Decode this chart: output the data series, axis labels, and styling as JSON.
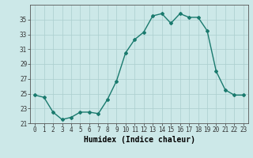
{
  "x": [
    0,
    1,
    2,
    3,
    4,
    5,
    6,
    7,
    8,
    9,
    10,
    11,
    12,
    13,
    14,
    15,
    16,
    17,
    18,
    19,
    20,
    21,
    22,
    23
  ],
  "y": [
    24.8,
    24.5,
    22.5,
    21.5,
    21.8,
    22.5,
    22.5,
    22.3,
    24.2,
    26.7,
    30.5,
    32.3,
    33.3,
    35.5,
    35.8,
    34.5,
    35.8,
    35.3,
    35.3,
    33.5,
    28.0,
    25.5,
    24.8,
    24.8
  ],
  "line_color": "#1a7a6e",
  "marker": "D",
  "marker_size": 2.0,
  "bg_color": "#cce8e8",
  "grid_color": "#aacece",
  "xlabel": "Humidex (Indice chaleur)",
  "xlim": [
    -0.5,
    23.5
  ],
  "ylim": [
    21,
    37
  ],
  "yticks": [
    21,
    23,
    25,
    27,
    29,
    31,
    33,
    35
  ],
  "xticks": [
    0,
    1,
    2,
    3,
    4,
    5,
    6,
    7,
    8,
    9,
    10,
    11,
    12,
    13,
    14,
    15,
    16,
    17,
    18,
    19,
    20,
    21,
    22,
    23
  ],
  "tick_fontsize": 5.5,
  "xlabel_fontsize": 7.0,
  "linewidth": 1.0
}
